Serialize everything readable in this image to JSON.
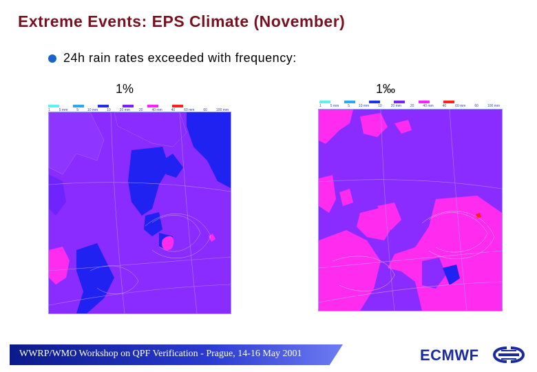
{
  "slide": {
    "title": "Extreme Events: EPS Climate (November)",
    "bullet": "24h rain rates exceeded with frequency:",
    "panels": [
      {
        "label": "1%"
      },
      {
        "label": "1‰"
      }
    ],
    "legend": {
      "labels": [
        "1",
        "5 mm",
        "5",
        "10 mm",
        "10",
        "20 mm",
        "20",
        "40 mm",
        "40",
        "60 mm",
        "60",
        "100 mm"
      ],
      "colors": [
        "#5ff0f0",
        "#2aa8f0",
        "#2030e8",
        "#7a20ff",
        "#ff20ff",
        "#ff2020"
      ]
    },
    "footer": "WWRP/WMO Workshop on QPF Verification - Prague, 14-16 May 2001",
    "logo": "ECMWF",
    "colors": {
      "title": "#7a1020",
      "violet": "#8a2cff",
      "blue": "#1f22f0",
      "magenta": "#ff2cf0"
    }
  }
}
